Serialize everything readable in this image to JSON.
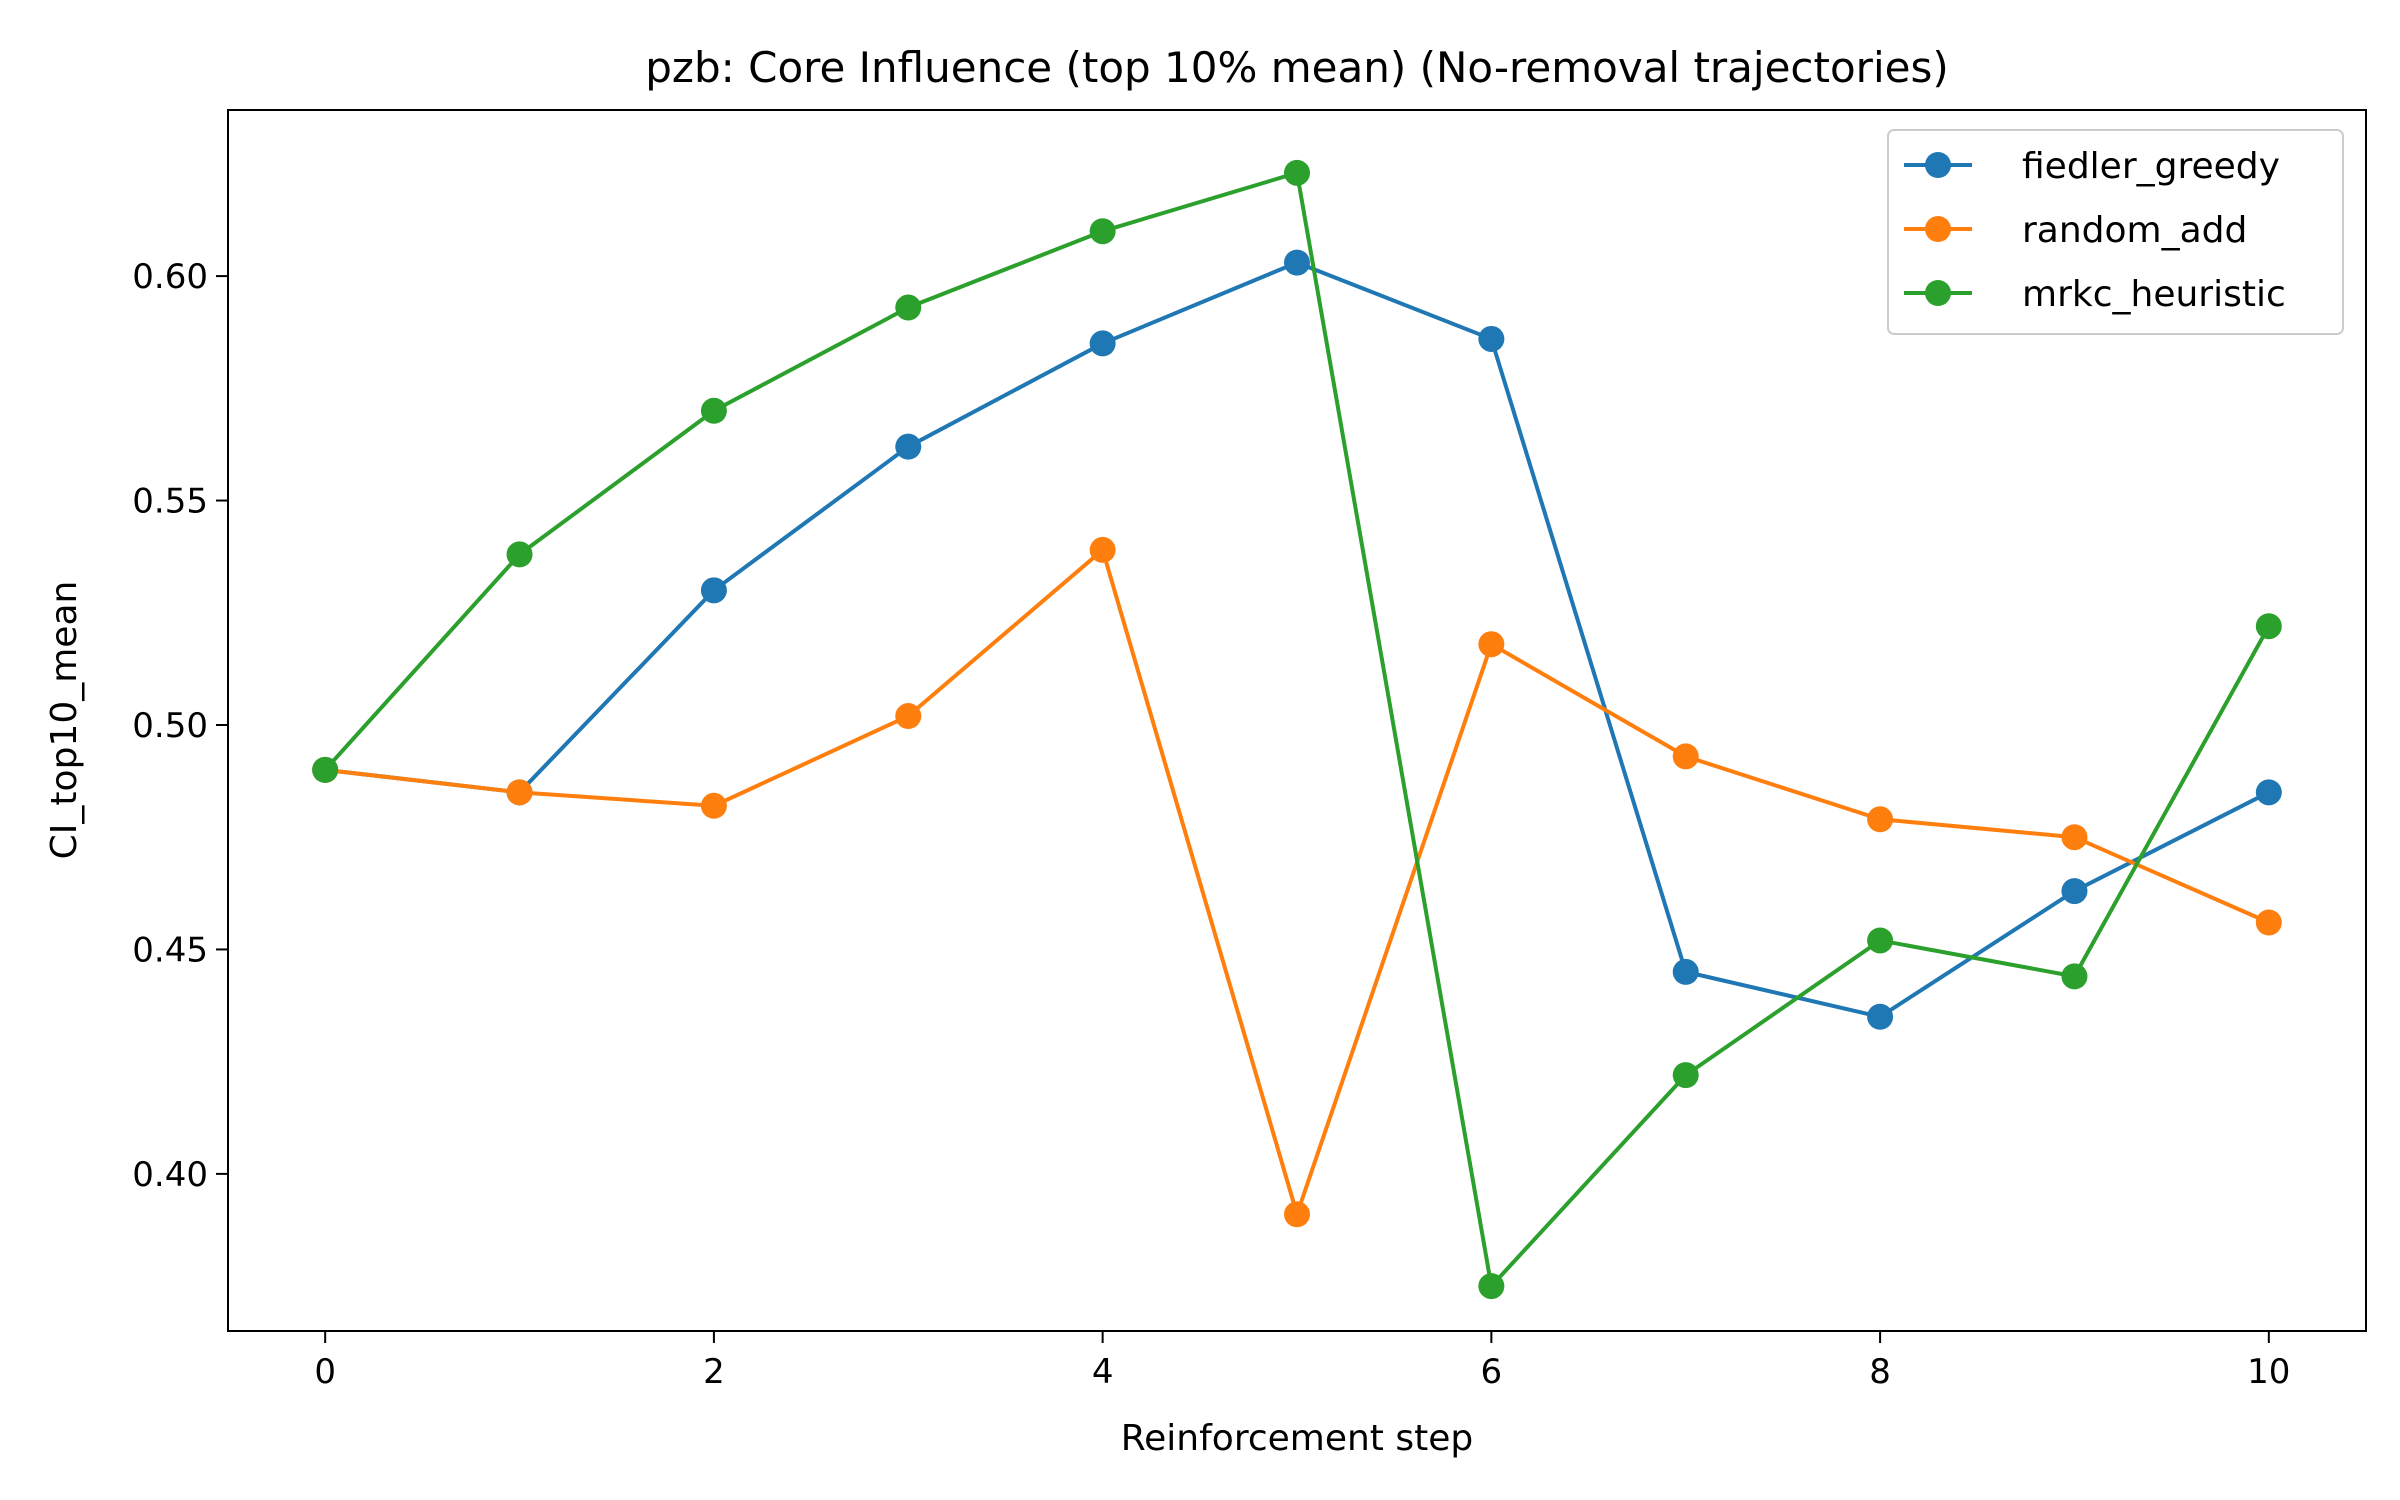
{
  "chart_data": {
    "type": "line",
    "title": "pzb: Core Influence (top 10% mean) (No-removal trajectories)",
    "xlabel": "Reinforcement step",
    "ylabel": "CI_top10_mean",
    "x": [
      0,
      1,
      2,
      3,
      4,
      5,
      6,
      7,
      8,
      9,
      10
    ],
    "xlim": [
      -0.5,
      10.5
    ],
    "ylim": [
      0.365,
      0.637
    ],
    "xticks": [
      0,
      2,
      4,
      6,
      8,
      10
    ],
    "yticks": [
      0.4,
      0.45,
      0.5,
      0.55,
      0.6
    ],
    "ytick_labels": [
      "0.40",
      "0.45",
      "0.50",
      "0.55",
      "0.60"
    ],
    "grid": false,
    "legend_position": "top-right",
    "series": [
      {
        "name": "fiedler_greedy",
        "color": "#1f77b4",
        "values": [
          0.49,
          0.485,
          0.53,
          0.562,
          0.585,
          0.603,
          0.586,
          0.445,
          0.435,
          0.463,
          0.485
        ]
      },
      {
        "name": "random_add",
        "color": "#ff7f0e",
        "values": [
          0.49,
          0.485,
          0.482,
          0.502,
          0.539,
          0.391,
          0.518,
          0.493,
          0.479,
          0.475,
          0.456
        ]
      },
      {
        "name": "mrkc_heuristic",
        "color": "#2ca02c",
        "values": [
          0.49,
          0.538,
          0.57,
          0.593,
          0.61,
          0.623,
          0.375,
          0.422,
          0.452,
          0.444,
          0.522
        ]
      }
    ]
  }
}
